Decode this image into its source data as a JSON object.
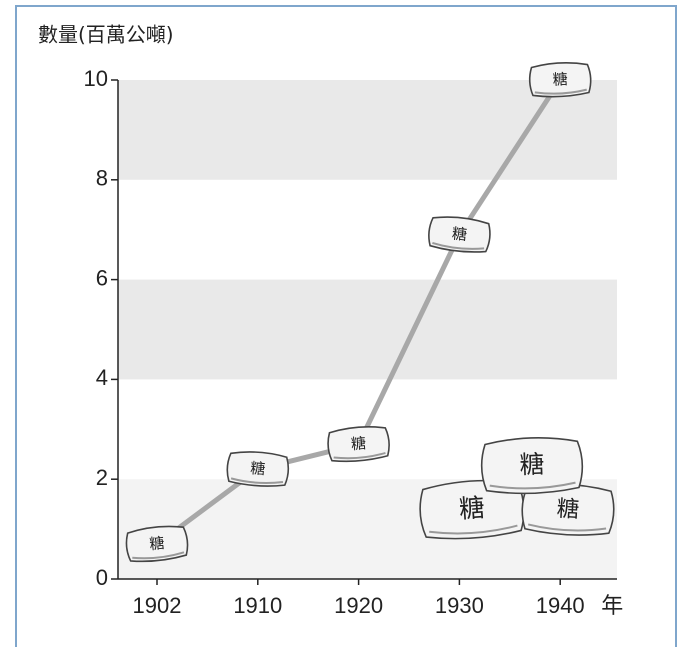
{
  "chart_data": {
    "type": "line",
    "title": "數量(百萬公噸)",
    "x_unit": "年",
    "categories": [
      "1902",
      "1910",
      "1920",
      "1930",
      "1940"
    ],
    "series": [
      {
        "name": "糖",
        "color": "#a8a8a8",
        "values": [
          0.7,
          2.2,
          2.7,
          6.9,
          10
        ]
      }
    ],
    "ylim": [
      0,
      10
    ],
    "yticks": [
      0,
      2,
      4,
      6,
      8,
      10
    ],
    "bands": true
  }
}
